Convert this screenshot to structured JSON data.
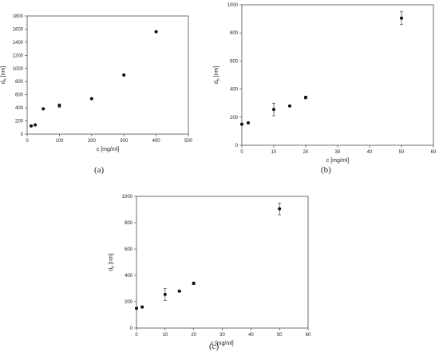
{
  "panel_labels": [
    "(a)",
    "(b)",
    "(c)"
  ],
  "chart_data": [
    {
      "type": "scatter",
      "xlabel": "c [mg/ml]",
      "ylabel_main": "d",
      "ylabel_sub": "h",
      "ylabel_unit": " [nm]",
      "xlim": [
        0,
        500
      ],
      "ylim": [
        0,
        1800
      ],
      "xticks": [
        0,
        100,
        200,
        300,
        400,
        500
      ],
      "yticks": [
        0,
        200,
        400,
        600,
        800,
        1000,
        1200,
        1400,
        1600,
        1800
      ],
      "grid": false,
      "series": [
        {
          "x": [
            12.5,
            25,
            50,
            100,
            200,
            300,
            400
          ],
          "y": [
            125,
            140,
            385,
            435,
            540,
            900,
            1560
          ],
          "err": [
            5,
            5,
            10,
            25,
            5,
            5,
            5
          ]
        }
      ]
    },
    {
      "type": "scatter",
      "xlabel": "c [mg/ml]",
      "ylabel_main": "d",
      "ylabel_sub": "h",
      "ylabel_unit": " [nm]",
      "xlim": [
        0,
        60
      ],
      "ylim": [
        0,
        1000
      ],
      "xticks": [
        0,
        10,
        20,
        30,
        40,
        50,
        60
      ],
      "yticks": [
        0,
        200,
        400,
        600,
        800,
        1000
      ],
      "grid": false,
      "series": [
        {
          "x": [
            0,
            2,
            10,
            15,
            20,
            50
          ],
          "y": [
            150,
            160,
            255,
            280,
            340,
            905
          ],
          "err": [
            5,
            5,
            45,
            5,
            10,
            45
          ]
        }
      ]
    },
    {
      "type": "scatter",
      "xlabel": "c [mg/ml]",
      "ylabel_main": "d",
      "ylabel_sub": "h",
      "ylabel_unit": " [nm]",
      "xlim": [
        0,
        60
      ],
      "ylim": [
        0,
        1000
      ],
      "xticks": [
        0,
        10,
        20,
        30,
        40,
        50,
        60
      ],
      "yticks": [
        0,
        200,
        400,
        600,
        800,
        1000
      ],
      "grid": false,
      "series": [
        {
          "x": [
            0,
            2,
            10,
            15,
            20,
            50
          ],
          "y": [
            150,
            160,
            255,
            280,
            340,
            905
          ],
          "err": [
            5,
            5,
            45,
            5,
            10,
            45
          ]
        }
      ]
    }
  ]
}
